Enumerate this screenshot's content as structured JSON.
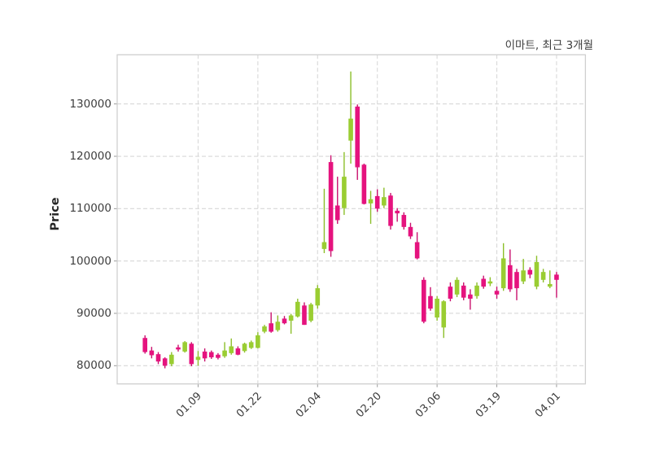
{
  "title": "이마트, 최근 3개월",
  "chart_data": {
    "type": "candlestick",
    "title": "이마트, 최근 3개월",
    "ylabel": "Price",
    "ylim": [
      76500,
      139400
    ],
    "yticks": [
      80000,
      90000,
      100000,
      110000,
      120000,
      130000
    ],
    "xticks": {
      "indices": [
        8,
        17,
        26,
        35,
        44,
        53,
        62
      ],
      "labels": [
        "01.09",
        "01.22",
        "02.04",
        "02.20",
        "03.06",
        "03.19",
        "04.01"
      ]
    },
    "grid": "dashed-both-axes",
    "legend_position": "none",
    "colors": {
      "up_body": "#9ACD32",
      "up_wick": "#8CBF2A",
      "down_body": "#E5137E",
      "down_wick": "#C9116E",
      "grid": "#D8D8D8",
      "border": "#CFCFCF",
      "tick_text": "#3D3D3D"
    },
    "ohlc_note": "open, high, low, close per trading day; close>open rendered green (up), else pink (down)",
    "ohlc": [
      [
        85300,
        85800,
        82300,
        82600
      ],
      [
        82900,
        83600,
        81400,
        82000
      ],
      [
        82200,
        82600,
        80300,
        80800
      ],
      [
        81400,
        81600,
        79500,
        80000
      ],
      [
        80300,
        82600,
        79900,
        82100
      ],
      [
        83500,
        84000,
        82700,
        83100
      ],
      [
        82700,
        84700,
        82500,
        84500
      ],
      [
        84200,
        84500,
        79900,
        80300
      ],
      [
        81100,
        82800,
        80000,
        81700
      ],
      [
        82700,
        83300,
        80800,
        81400
      ],
      [
        82600,
        82900,
        81300,
        81600
      ],
      [
        82100,
        82400,
        81200,
        81500
      ],
      [
        81800,
        84500,
        81500,
        82900
      ],
      [
        82400,
        85200,
        82100,
        83700
      ],
      [
        83300,
        83700,
        82000,
        82100
      ],
      [
        82800,
        84400,
        82500,
        84200
      ],
      [
        83400,
        84800,
        83200,
        84500
      ],
      [
        83400,
        86400,
        83300,
        85800
      ],
      [
        86500,
        87800,
        86200,
        87500
      ],
      [
        88100,
        90200,
        86300,
        86500
      ],
      [
        86800,
        89600,
        86500,
        88400
      ],
      [
        89000,
        89500,
        87900,
        88100
      ],
      [
        88600,
        89900,
        86100,
        89600
      ],
      [
        89400,
        92800,
        89200,
        92200
      ],
      [
        91500,
        92100,
        87800,
        87800
      ],
      [
        88600,
        92000,
        88300,
        91700
      ],
      [
        91500,
        95400,
        90900,
        94800
      ],
      [
        102300,
        113800,
        101500,
        103600
      ],
      [
        118900,
        120200,
        100800,
        101900
      ],
      [
        110600,
        116100,
        107100,
        107800
      ],
      [
        110100,
        120800,
        108800,
        116100
      ],
      [
        123000,
        136200,
        118600,
        127200
      ],
      [
        129500,
        129900,
        115500,
        117900
      ],
      [
        118400,
        118600,
        110800,
        110900
      ],
      [
        111000,
        113400,
        107100,
        111800
      ],
      [
        112400,
        113700,
        109400,
        110000
      ],
      [
        110600,
        114000,
        110100,
        112200
      ],
      [
        112500,
        113000,
        106000,
        106700
      ],
      [
        109600,
        110100,
        107500,
        109100
      ],
      [
        108800,
        109300,
        106000,
        106500
      ],
      [
        106500,
        107300,
        104200,
        104700
      ],
      [
        103600,
        105500,
        100300,
        100500
      ],
      [
        96400,
        96900,
        88100,
        88400
      ],
      [
        93300,
        95000,
        90500,
        90900
      ],
      [
        89200,
        93300,
        88600,
        92800
      ],
      [
        87300,
        92500,
        85300,
        92300
      ],
      [
        95100,
        95900,
        92300,
        92800
      ],
      [
        93600,
        96900,
        93100,
        96400
      ],
      [
        95300,
        95900,
        92500,
        93000
      ],
      [
        93600,
        94600,
        90700,
        92800
      ],
      [
        93300,
        95900,
        92800,
        95300
      ],
      [
        96600,
        97200,
        94700,
        95100
      ],
      [
        95700,
        96900,
        95200,
        96100
      ],
      [
        94300,
        95100,
        92800,
        93600
      ],
      [
        94800,
        103400,
        94300,
        100500
      ],
      [
        99200,
        102200,
        94100,
        94600
      ],
      [
        97900,
        98500,
        92500,
        94800
      ],
      [
        96100,
        100400,
        95600,
        98200
      ],
      [
        98300,
        98800,
        96700,
        97400
      ],
      [
        95100,
        101000,
        94600,
        99800
      ],
      [
        96400,
        98500,
        95900,
        97900
      ],
      [
        95100,
        98200,
        94800,
        95600
      ],
      [
        97400,
        97900,
        93000,
        96400
      ]
    ]
  }
}
